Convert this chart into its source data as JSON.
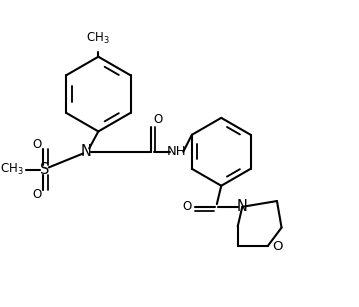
{
  "bg": "#ffffff",
  "lc": "#000000",
  "lw": 1.5,
  "fs": 8.5,
  "xlim": [
    -0.3,
    9.8
  ],
  "ylim": [
    0.5,
    9.5
  ]
}
